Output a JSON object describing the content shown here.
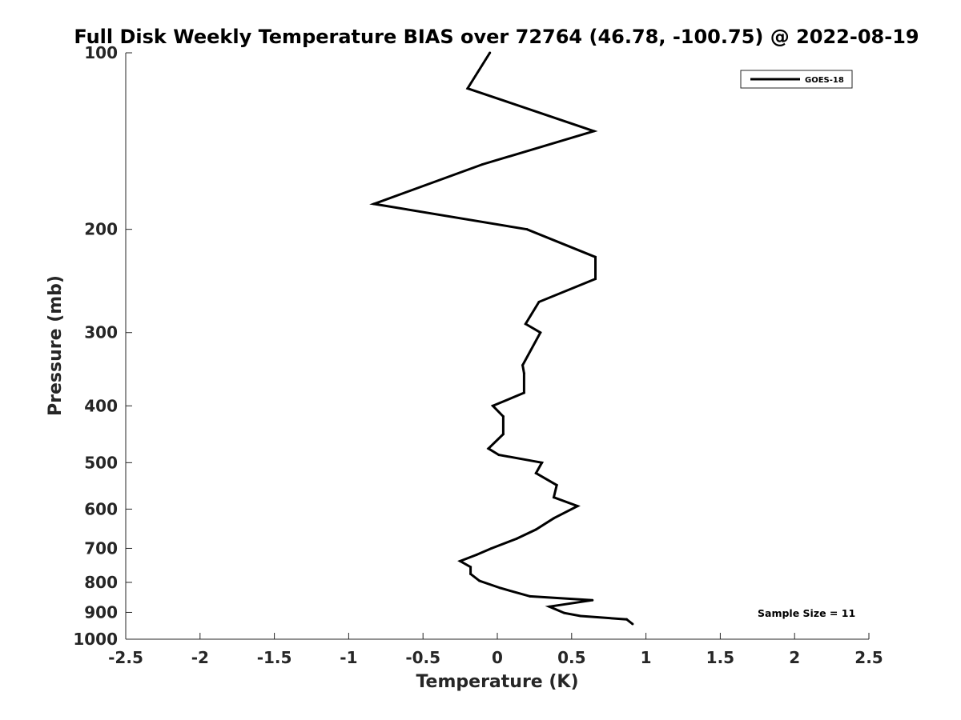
{
  "chart_data": {
    "type": "line",
    "title": "Full Disk Weekly Temperature BIAS over 72764 (46.78, -100.75) @ 2022-08-19",
    "xlabel": "Temperature (K)",
    "ylabel": "Pressure (mb)",
    "xlim": [
      -2.5,
      2.5
    ],
    "ylim": [
      100,
      1000
    ],
    "y_scale": "log",
    "y_reversed": true,
    "x_ticks": [
      "-2.5",
      "-2",
      "-1.5",
      "-1",
      "-0.5",
      "0",
      "0.5",
      "1",
      "1.5",
      "2",
      "2.5"
    ],
    "y_ticks": [
      "100",
      "200",
      "300",
      "400",
      "500",
      "600",
      "700",
      "800",
      "900",
      "1000"
    ],
    "grid": false,
    "legend_position": "top-right",
    "annotation": "Sample Size = 11",
    "line_color": "#000000",
    "series": [
      {
        "name": "GOES-18",
        "points": [
          {
            "x": -0.05,
            "y": 100
          },
          {
            "x": -0.2,
            "y": 115
          },
          {
            "x": 0.65,
            "y": 136
          },
          {
            "x": -0.1,
            "y": 155
          },
          {
            "x": -0.83,
            "y": 181
          },
          {
            "x": 0.2,
            "y": 200
          },
          {
            "x": 0.66,
            "y": 223
          },
          {
            "x": 0.66,
            "y": 243
          },
          {
            "x": 0.28,
            "y": 266
          },
          {
            "x": 0.19,
            "y": 290
          },
          {
            "x": 0.29,
            "y": 300
          },
          {
            "x": 0.17,
            "y": 341
          },
          {
            "x": 0.18,
            "y": 352
          },
          {
            "x": 0.18,
            "y": 380
          },
          {
            "x": -0.03,
            "y": 400
          },
          {
            "x": 0.04,
            "y": 417
          },
          {
            "x": 0.04,
            "y": 447
          },
          {
            "x": -0.06,
            "y": 473
          },
          {
            "x": 0.01,
            "y": 485
          },
          {
            "x": 0.3,
            "y": 500
          },
          {
            "x": 0.26,
            "y": 521
          },
          {
            "x": 0.4,
            "y": 546
          },
          {
            "x": 0.38,
            "y": 573
          },
          {
            "x": 0.54,
            "y": 593
          },
          {
            "x": 0.38,
            "y": 622
          },
          {
            "x": 0.26,
            "y": 650
          },
          {
            "x": 0.13,
            "y": 674
          },
          {
            "x": -0.04,
            "y": 700
          },
          {
            "x": -0.14,
            "y": 718
          },
          {
            "x": -0.25,
            "y": 736
          },
          {
            "x": -0.18,
            "y": 753
          },
          {
            "x": -0.18,
            "y": 774
          },
          {
            "x": -0.12,
            "y": 795
          },
          {
            "x": 0.02,
            "y": 818
          },
          {
            "x": 0.22,
            "y": 845
          },
          {
            "x": 0.64,
            "y": 858
          },
          {
            "x": 0.35,
            "y": 880
          },
          {
            "x": 0.45,
            "y": 902
          },
          {
            "x": 0.56,
            "y": 913
          },
          {
            "x": 0.87,
            "y": 925
          },
          {
            "x": 0.91,
            "y": 942
          }
        ]
      }
    ]
  }
}
